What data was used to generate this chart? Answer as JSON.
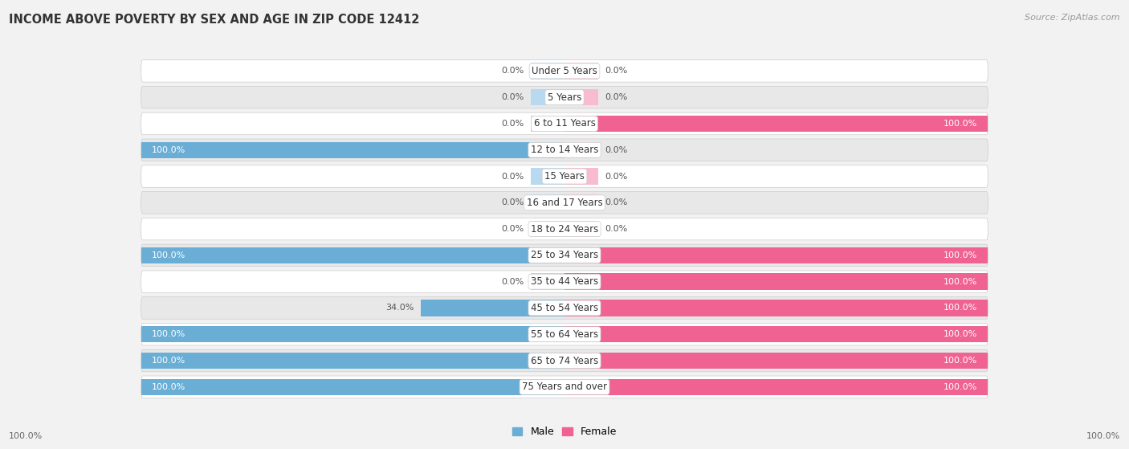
{
  "title": "INCOME ABOVE POVERTY BY SEX AND AGE IN ZIP CODE 12412",
  "source": "Source: ZipAtlas.com",
  "categories": [
    "Under 5 Years",
    "5 Years",
    "6 to 11 Years",
    "12 to 14 Years",
    "15 Years",
    "16 and 17 Years",
    "18 to 24 Years",
    "25 to 34 Years",
    "35 to 44 Years",
    "45 to 54 Years",
    "55 to 64 Years",
    "65 to 74 Years",
    "75 Years and over"
  ],
  "male_values": [
    0.0,
    0.0,
    0.0,
    100.0,
    0.0,
    0.0,
    0.0,
    100.0,
    0.0,
    34.0,
    100.0,
    100.0,
    100.0
  ],
  "female_values": [
    0.0,
    0.0,
    100.0,
    0.0,
    0.0,
    0.0,
    0.0,
    100.0,
    100.0,
    100.0,
    100.0,
    100.0,
    100.0
  ],
  "male_color": "#6aaed6",
  "male_color_light": "#b8d9ef",
  "female_color": "#f06292",
  "female_color_light": "#f9bbd0",
  "male_label": "Male",
  "female_label": "Female",
  "bg_color": "#f2f2f2",
  "row_bg_white": "#ffffff",
  "row_bg_gray": "#e8e8e8",
  "title_fontsize": 10.5,
  "source_fontsize": 8,
  "label_fontsize": 8.5,
  "value_fontsize": 8,
  "stub_value": 8,
  "xlim_abs": 100,
  "bar_height": 0.62
}
